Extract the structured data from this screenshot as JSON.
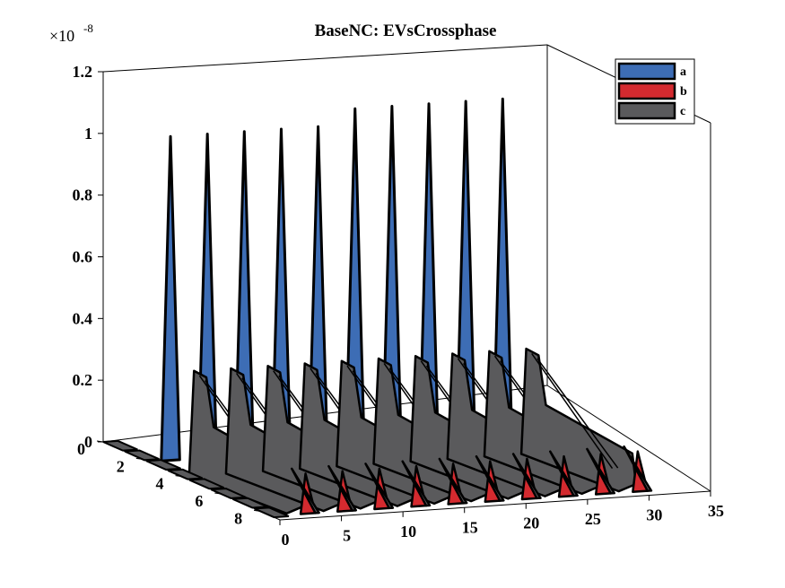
{
  "chart_data": {
    "type": "area",
    "title": "BaseNC: EVsCrossphase",
    "xlabel": "",
    "ylabel": "",
    "zlabel": "",
    "exponent_label": {
      "base": "×10",
      "power": "-8"
    },
    "x_ticks": [
      "0",
      "5",
      "10",
      "15",
      "20",
      "25",
      "30",
      "35"
    ],
    "y_ticks": [
      "0",
      "2",
      "4",
      "6",
      "8"
    ],
    "z_ticks": [
      "0",
      "0.2",
      "0.4",
      "0.6",
      "0.8",
      "1",
      "1.2"
    ],
    "xlim": [
      0,
      35
    ],
    "ylim": [
      0,
      9
    ],
    "zlim": [
      0,
      1.2
    ],
    "z_scale": "1e-8",
    "grid": false,
    "legend_position": "top-right",
    "series": [
      {
        "name": "a",
        "color": "#3d6db5",
        "peak_values": [
          1.05,
          1.05,
          1.05,
          1.05,
          1.05,
          1.1,
          1.1,
          1.1,
          1.1,
          1.1
        ]
      },
      {
        "name": "b",
        "color": "#d42a2f",
        "peak_values": [
          0.03,
          0.03,
          0.03,
          0.03,
          0.03,
          0.03,
          0.03,
          0.03,
          0.03,
          0.03
        ]
      },
      {
        "name": "c",
        "color": "#5a5a5c",
        "peak_values": [
          0.34,
          0.34,
          0.34,
          0.34,
          0.34,
          0.34,
          0.34,
          0.34,
          0.34,
          0.34
        ]
      }
    ]
  }
}
